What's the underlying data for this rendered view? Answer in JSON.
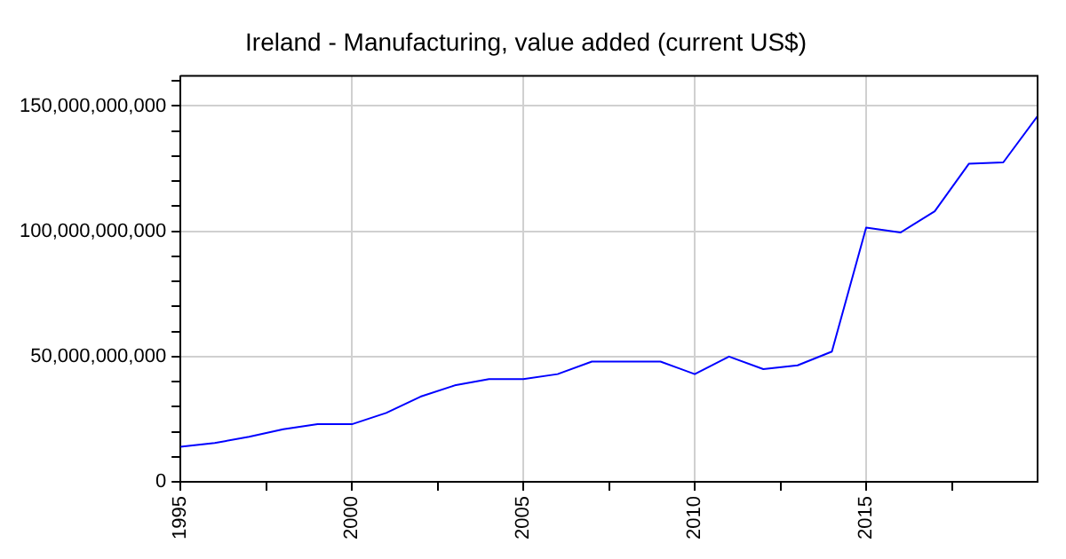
{
  "chart_data": {
    "type": "line",
    "title": "Ireland - Manufacturing, value added (current US$)",
    "x": [
      1995,
      1996,
      1997,
      1998,
      1999,
      2000,
      2001,
      2002,
      2003,
      2004,
      2005,
      2006,
      2007,
      2008,
      2009,
      2010,
      2011,
      2012,
      2013,
      2014,
      2015,
      2016,
      2017,
      2018,
      2019,
      2020
    ],
    "series": [
      {
        "color": "#0000ff",
        "values": [
          14000000000,
          15500000000,
          18000000000,
          21000000000,
          23000000000,
          23000000000,
          27500000000,
          34000000000,
          38500000000,
          41000000000,
          41000000000,
          43000000000,
          48000000000,
          48000000000,
          48000000000,
          43000000000,
          50000000000,
          45000000000,
          46500000000,
          52000000000,
          101500000000,
          99500000000,
          108000000000,
          127000000000,
          127500000000,
          146000000000
        ]
      }
    ],
    "xlim": [
      1995,
      2020
    ],
    "xticks": [
      1995,
      {
        "value": 1997.5,
        "label": null
      },
      2000,
      {
        "value": 2002.5,
        "label": null
      },
      2005,
      {
        "value": 2007.5,
        "label": null
      },
      2010,
      {
        "value": 2012.5,
        "label": null
      },
      2015,
      {
        "value": 2017.5,
        "label": null
      }
    ],
    "ylim": [
      0,
      162000000000
    ],
    "yticks": [
      {
        "value": 0,
        "label": "0"
      },
      {
        "value": 10000000000,
        "label": null
      },
      {
        "value": 20000000000,
        "label": null
      },
      {
        "value": 30000000000,
        "label": null
      },
      {
        "value": 40000000000,
        "label": null
      },
      {
        "value": 50000000000,
        "label": "50,000,000,000"
      },
      {
        "value": 60000000000,
        "label": null
      },
      {
        "value": 70000000000,
        "label": null
      },
      {
        "value": 80000000000,
        "label": null
      },
      {
        "value": 90000000000,
        "label": null
      },
      {
        "value": 100000000000,
        "label": "100,000,000,000"
      },
      {
        "value": 110000000000,
        "label": null
      },
      {
        "value": 120000000000,
        "label": null
      },
      {
        "value": 130000000000,
        "label": null
      },
      {
        "value": 140000000000,
        "label": null
      },
      {
        "value": 150000000000,
        "label": "150,000,000,000"
      },
      {
        "value": 160000000000,
        "label": null
      }
    ],
    "grid": true,
    "legend": false,
    "marker": "none",
    "line_style": "solid"
  }
}
